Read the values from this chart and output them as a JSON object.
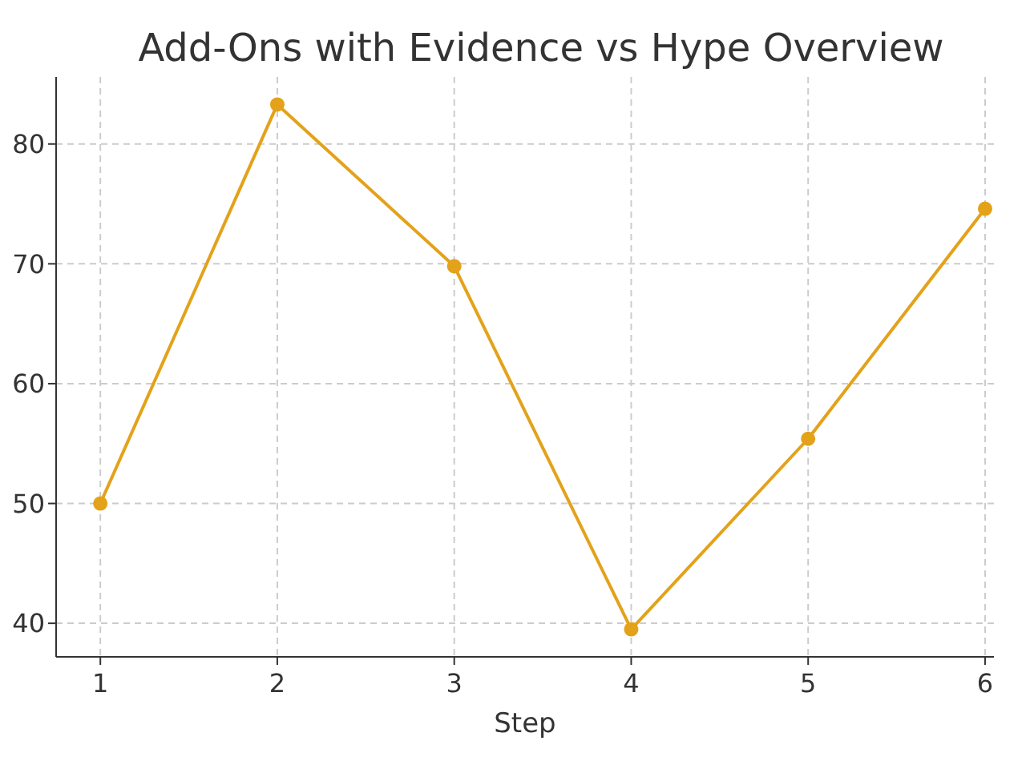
{
  "chart_data": {
    "type": "line",
    "title": "Add-Ons with Evidence vs Hype Overview",
    "xlabel": "Step",
    "x": [
      1,
      2,
      3,
      4,
      5,
      6
    ],
    "series": [
      {
        "color": "#e3a21a",
        "values": [
          50.0,
          83.3,
          69.8,
          39.5,
          55.4,
          74.6
        ]
      }
    ],
    "xlim": [
      0.75,
      6.05
    ],
    "xticks": [
      1,
      2,
      3,
      4,
      5,
      6
    ],
    "ylim": [
      37.2,
      85.6
    ],
    "yticks": [
      40,
      50,
      60,
      70,
      80
    ],
    "grid": true,
    "marker": "circle",
    "line_style": "solid"
  }
}
